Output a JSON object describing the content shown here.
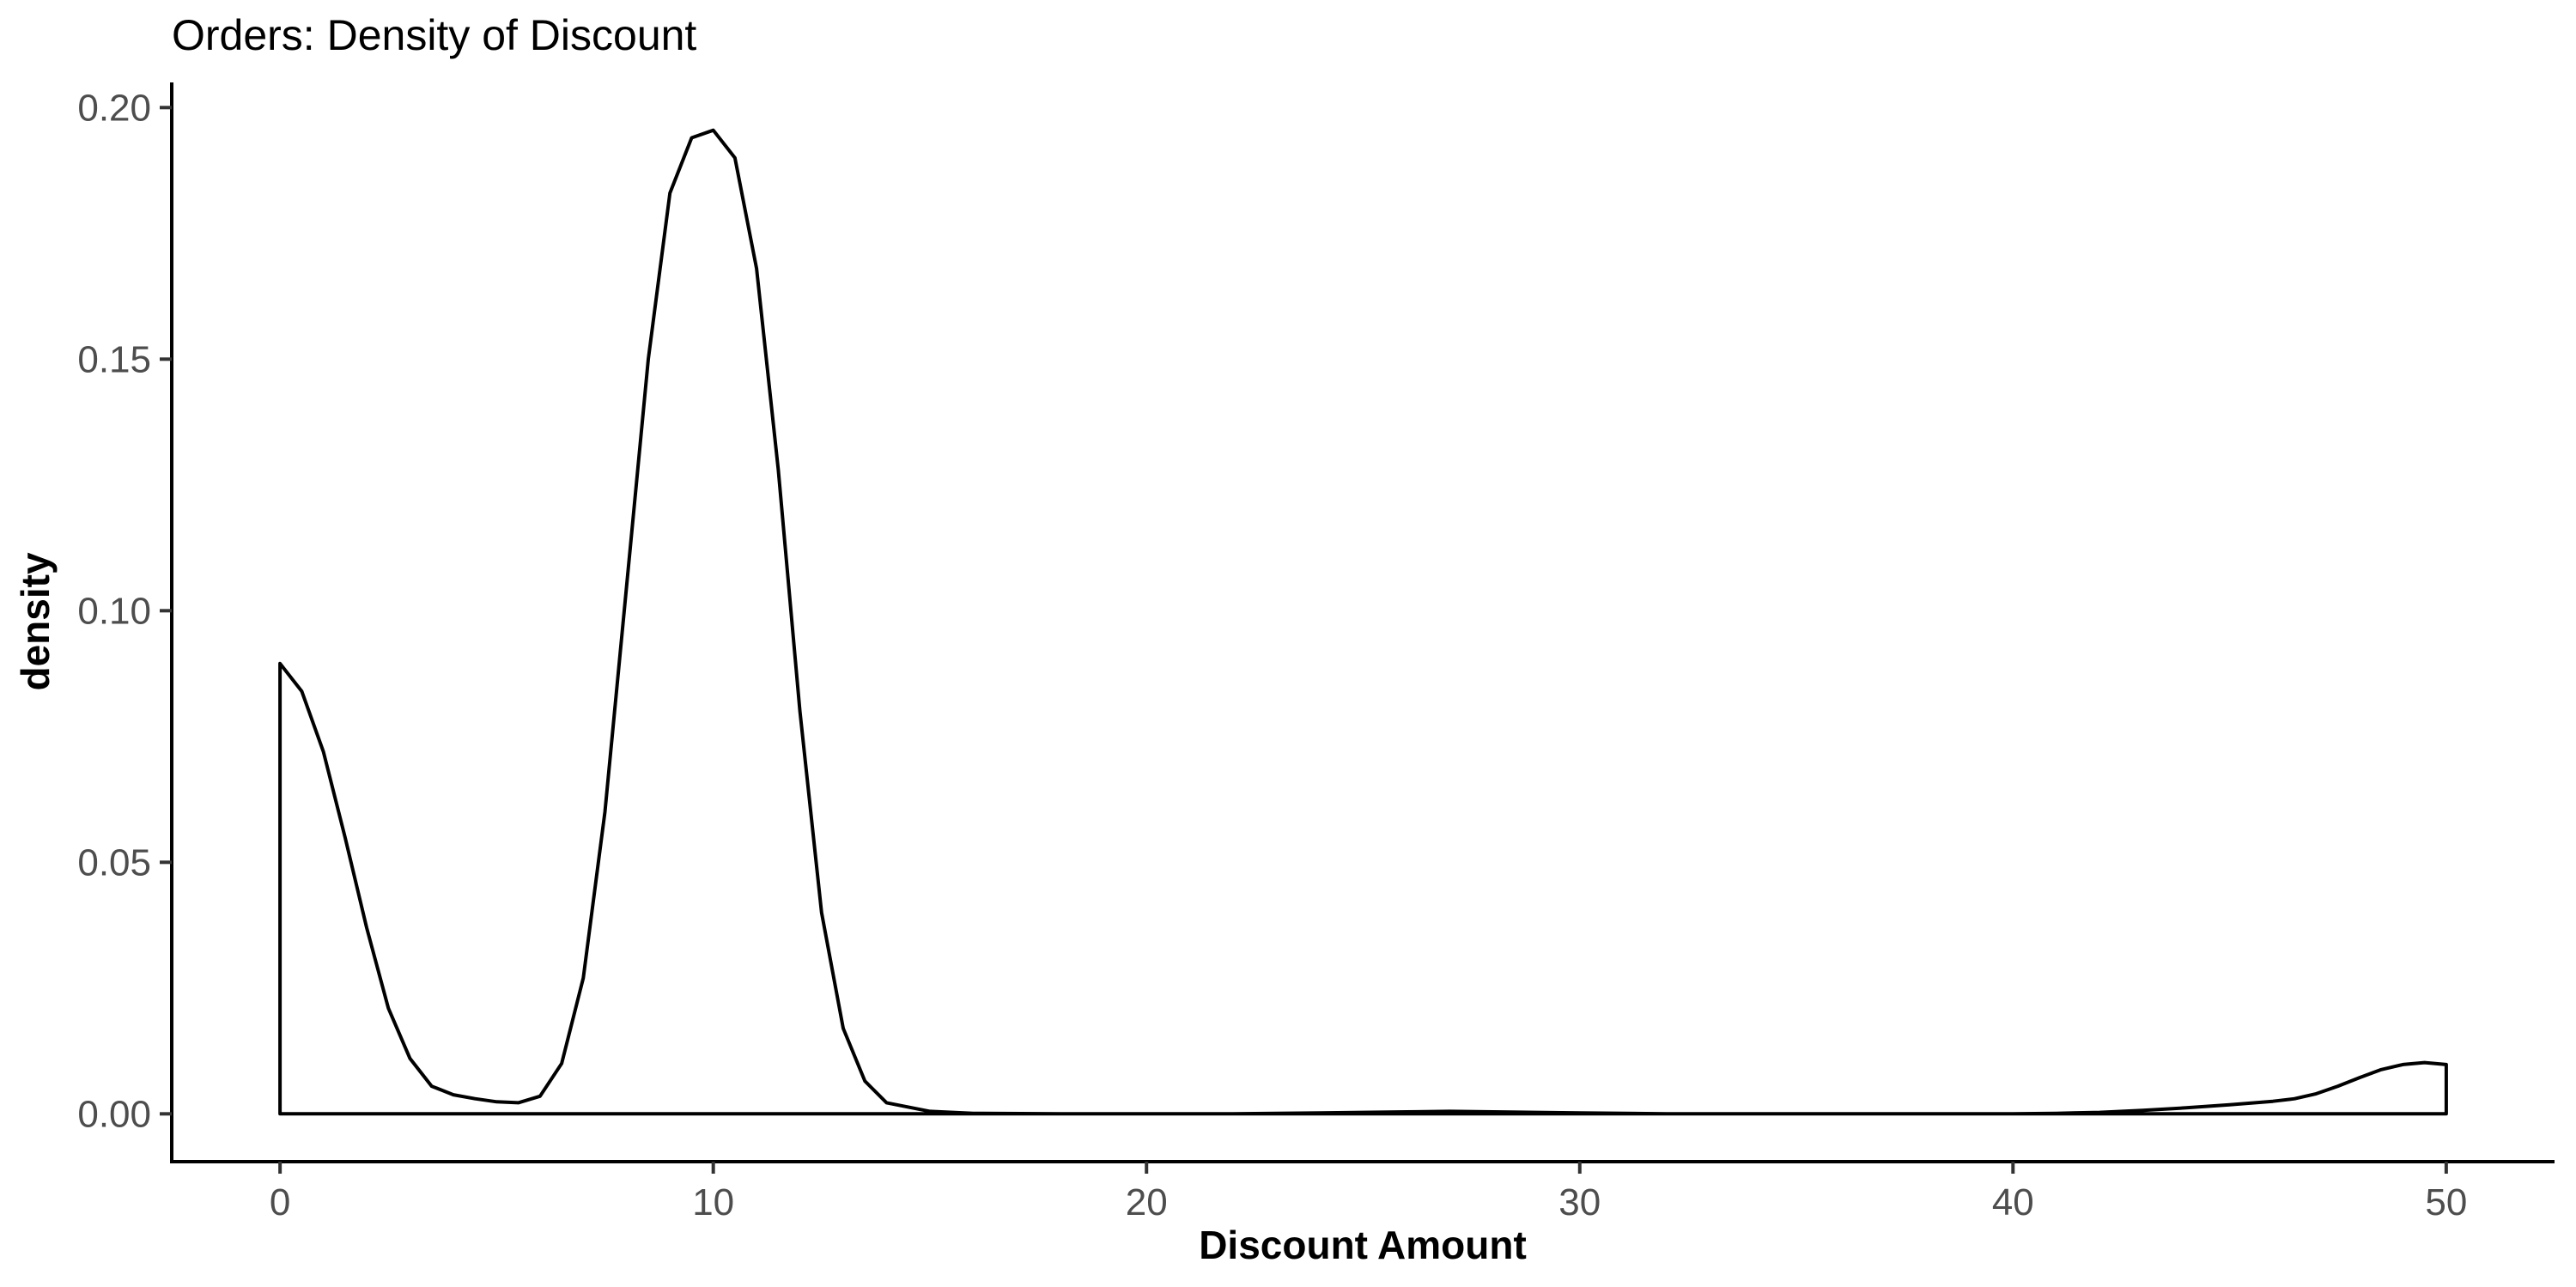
{
  "chart_data": {
    "type": "area",
    "title": "Orders: Density of Discount",
    "xlabel": "Discount Amount",
    "ylabel": "density",
    "xlim": [
      -2.5,
      52.5
    ],
    "ylim": [
      -0.0095,
      0.205
    ],
    "x_ticks": [
      0,
      10,
      20,
      30,
      40,
      50
    ],
    "x_tick_labels": [
      "0",
      "10",
      "20",
      "30",
      "40",
      "50"
    ],
    "y_ticks": [
      0.0,
      0.05,
      0.1,
      0.15,
      0.2
    ],
    "y_tick_labels": [
      "0.00",
      "0.05",
      "0.10",
      "0.15",
      "0.20"
    ],
    "grid": false,
    "legend": "none",
    "colors": {
      "line": "#000000",
      "fill": "none",
      "background": "#ffffff"
    },
    "series": [
      {
        "x": [
          0,
          0.5,
          1,
          1.5,
          2,
          2.5,
          3,
          3.5,
          4,
          4.5,
          5,
          5.5,
          6,
          6.5,
          7,
          7.5,
          8,
          8.5,
          9,
          9.5,
          10,
          10.5,
          11,
          11.5,
          12,
          12.5,
          13,
          13.5,
          14,
          15,
          16,
          18,
          20,
          22,
          24,
          26,
          27,
          28,
          30,
          32,
          34,
          36,
          38,
          40,
          41,
          42,
          43,
          44,
          45,
          46,
          46.5,
          47,
          47.5,
          48,
          48.5,
          49,
          49.5,
          50
        ],
        "y": [
          0.0895,
          0.084,
          0.072,
          0.055,
          0.037,
          0.021,
          0.011,
          0.0055,
          0.0038,
          0.003,
          0.0024,
          0.0022,
          0.0035,
          0.01,
          0.027,
          0.06,
          0.105,
          0.15,
          0.183,
          0.194,
          0.1955,
          0.19,
          0.168,
          0.128,
          0.08,
          0.04,
          0.017,
          0.0065,
          0.0022,
          0.0005,
          0.0001,
          0.0,
          0.0,
          0.0,
          0.0002,
          0.0004,
          0.0005,
          0.0004,
          0.0002,
          0.0,
          0.0,
          0.0,
          0.0,
          0.0,
          0.0001,
          0.0003,
          0.0007,
          0.0012,
          0.0018,
          0.0025,
          0.003,
          0.004,
          0.0055,
          0.0072,
          0.0088,
          0.0098,
          0.0102,
          0.0098
        ]
      }
    ]
  }
}
